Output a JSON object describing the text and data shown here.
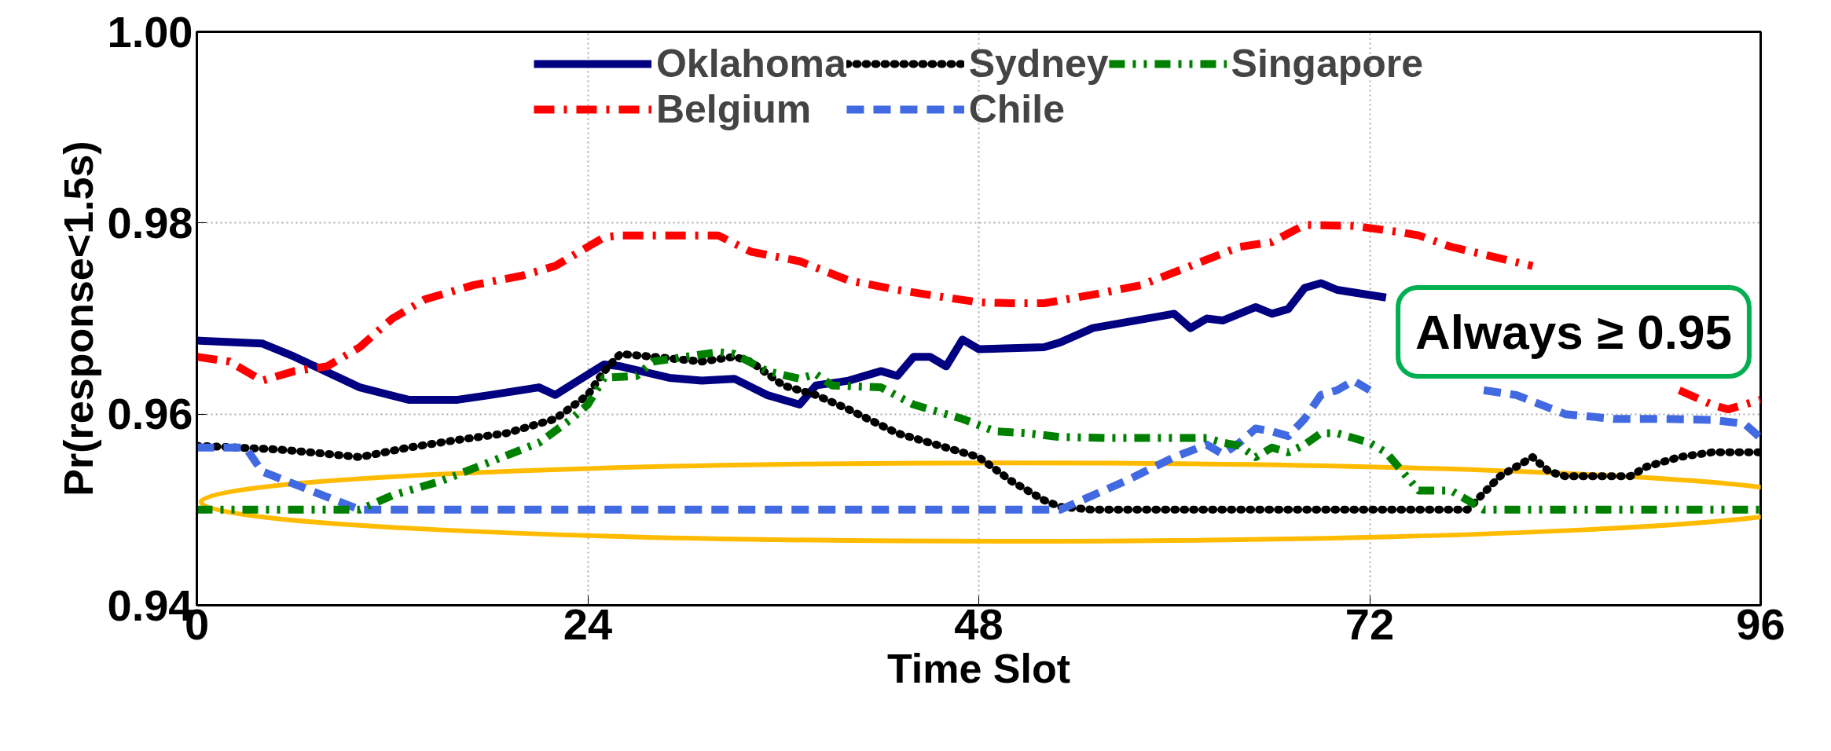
{
  "chart_data": {
    "type": "line",
    "xlabel": "Time Slot",
    "ylabel": "Pr(response<1.5s)",
    "xlim": [
      0,
      96
    ],
    "xticks": [
      0,
      24,
      48,
      72,
      96
    ],
    "ylim": [
      0.94,
      1.0
    ],
    "yticks": [
      0.94,
      0.96,
      0.98,
      {
        "value": 1.0,
        "label": "1.00"
      }
    ],
    "grid": true,
    "legend": "top",
    "marker": "none",
    "annotations": [
      "Always ≥ 0.95"
    ],
    "series": [
      {
        "name": "Oklahoma",
        "color": "#000080",
        "line_style": "solid",
        "x": [
          0,
          4,
          6,
          10,
          13,
          16,
          18,
          21,
          22,
          25,
          26,
          29,
          31,
          33,
          35,
          37,
          38,
          40,
          42,
          43,
          44,
          45,
          46,
          47,
          48,
          52,
          53,
          55,
          60,
          61,
          62,
          63,
          65,
          66,
          67,
          68,
          69,
          70,
          73
        ],
        "values": [
          0.9677,
          0.9674,
          0.966,
          0.9628,
          0.9615,
          0.9615,
          0.962,
          0.9628,
          0.962,
          0.9652,
          0.965,
          0.9638,
          0.9635,
          0.9637,
          0.962,
          0.961,
          0.963,
          0.9635,
          0.9645,
          0.964,
          0.966,
          0.966,
          0.965,
          0.9678,
          0.9668,
          0.967,
          0.9675,
          0.969,
          0.9705,
          0.969,
          0.97,
          0.9698,
          0.9712,
          0.9705,
          0.971,
          0.9732,
          0.9737,
          0.973,
          0.9722
        ]
      },
      {
        "name": "Belgium",
        "color": "#ff0000",
        "line_style": "dashdot",
        "x": [
          0,
          2,
          4,
          6,
          8,
          10,
          12,
          14,
          17,
          20,
          22,
          24,
          25,
          26,
          32,
          34,
          37,
          40,
          43,
          46,
          48,
          50,
          52,
          55,
          58,
          61,
          64,
          66,
          68,
          71,
          74,
          75,
          77,
          80,
          82,
          86,
          91,
          93,
          94,
          96
        ],
        "values": [
          0.966,
          0.9655,
          0.9635,
          0.9645,
          0.965,
          0.967,
          0.97,
          0.972,
          0.9735,
          0.9745,
          0.9755,
          0.9775,
          0.9785,
          0.9787,
          0.9787,
          0.977,
          0.976,
          0.974,
          0.973,
          0.9722,
          0.9717,
          0.9716,
          0.9716,
          0.9725,
          0.9735,
          0.9755,
          0.9775,
          0.978,
          0.9798,
          0.9797,
          0.979,
          0.9787,
          0.9775,
          0.9763,
          0.9755,
          null,
          0.9625,
          0.961,
          0.9605,
          0.9615
        ]
      },
      {
        "name": "Sydney",
        "color": "#000000",
        "line_style": "dotted",
        "x": [
          0,
          5,
          7,
          10,
          13,
          16,
          19,
          22,
          24,
          25,
          26,
          28,
          31,
          33,
          34,
          36,
          38,
          40,
          43,
          46,
          48,
          50,
          52,
          53,
          55,
          78,
          80,
          82,
          83,
          84,
          88,
          89,
          91,
          93,
          96
        ],
        "values": [
          0.9567,
          0.9563,
          0.956,
          0.9555,
          0.9565,
          0.9573,
          0.958,
          0.9595,
          0.962,
          0.9645,
          0.9663,
          0.966,
          0.9655,
          0.966,
          0.9655,
          0.963,
          0.962,
          0.9605,
          0.958,
          0.9565,
          0.9555,
          0.953,
          0.951,
          0.9503,
          0.95,
          0.95,
          0.9535,
          0.9555,
          0.954,
          0.9535,
          0.9535,
          0.9545,
          0.9555,
          0.956,
          0.956
        ]
      },
      {
        "name": "Chile",
        "color": "#4169e1",
        "line_style": "dashed",
        "x": [
          0,
          3,
          4,
          7,
          10,
          53,
          55,
          57,
          60,
          62,
          63,
          64,
          65,
          66,
          67,
          68,
          69,
          70,
          71,
          72,
          75,
          79,
          81,
          84,
          87,
          90,
          93,
          95,
          96
        ],
        "values": [
          0.9565,
          0.9565,
          0.954,
          0.952,
          0.95,
          0.95,
          0.9515,
          0.953,
          0.9555,
          0.9568,
          0.9558,
          0.957,
          0.9585,
          0.9582,
          0.9577,
          0.9595,
          0.962,
          0.9625,
          0.9635,
          0.9625,
          null,
          0.9625,
          0.962,
          0.96,
          0.9595,
          0.9595,
          0.9594,
          0.959,
          0.9575
        ]
      },
      {
        "name": "Singapore",
        "color": "#008000",
        "line_style": "dashdotdot",
        "x": [
          0,
          10,
          12,
          15,
          18,
          21,
          23,
          24,
          25,
          27,
          28,
          32,
          33,
          35,
          37,
          38,
          39,
          42,
          44,
          47,
          49,
          51,
          53,
          56,
          60,
          62,
          63,
          64,
          65,
          66,
          67,
          68,
          69,
          70,
          72,
          73,
          75,
          77,
          78,
          79,
          96
        ],
        "values": [
          0.95,
          0.95,
          0.9515,
          0.953,
          0.955,
          0.957,
          0.9595,
          0.961,
          0.9638,
          0.964,
          0.9655,
          0.9665,
          0.9663,
          0.9645,
          0.9637,
          0.9642,
          0.963,
          0.9628,
          0.961,
          0.9595,
          0.9582,
          0.958,
          0.9576,
          0.9575,
          0.9575,
          0.9575,
          0.957,
          0.9567,
          0.9555,
          0.9565,
          0.956,
          0.9568,
          0.958,
          0.958,
          0.957,
          0.956,
          0.952,
          0.952,
          0.951,
          0.95,
          0.95
        ]
      }
    ]
  }
}
